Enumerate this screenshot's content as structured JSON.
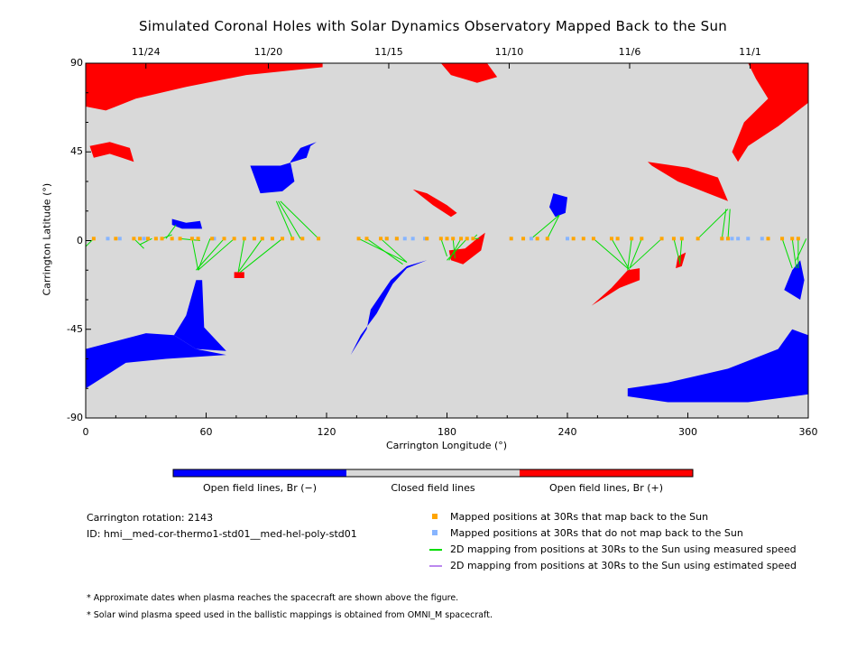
{
  "chart_data": {
    "type": "map",
    "title": "Simulated Coronal Holes with Solar Dynamics Observatory Mapped Back to the Sun",
    "xlabel": "Carrington Longitude (°)",
    "ylabel": "Carrington Latitude (°)",
    "xlim": [
      0,
      360
    ],
    "ylim": [
      -90,
      90
    ],
    "x_ticks": [
      0,
      60,
      120,
      180,
      240,
      300,
      360
    ],
    "y_ticks": [
      {
        "value": 90,
        "label": "90"
      },
      {
        "value": 45,
        "label": "45"
      },
      {
        "value": 0,
        "label": "0"
      },
      {
        "value": -45,
        "label": "-45"
      },
      {
        "value": -90,
        "label": "-90"
      }
    ],
    "top_dates": [
      {
        "label": "11/24",
        "lon": 30
      },
      {
        "label": "11/20",
        "lon": 91
      },
      {
        "label": "11/15",
        "lon": 151
      },
      {
        "label": "11/10",
        "lon": 211
      },
      {
        "label": "11/6",
        "lon": 271
      },
      {
        "label": "11/1",
        "lon": 331
      }
    ],
    "colorbar": {
      "colors": [
        "#0000ff",
        "#d9d9d9",
        "#ff0000"
      ],
      "labels": [
        "Open field lines, Br (−)",
        "Closed field lines",
        "Open field lines, Br (+)"
      ]
    },
    "regions": [
      {
        "polarity": "positive",
        "name": "north-polar-hole-left",
        "points": [
          [
            0,
            90
          ],
          [
            118,
            90
          ],
          [
            118,
            88
          ],
          [
            80,
            84
          ],
          [
            50,
            78
          ],
          [
            25,
            72
          ],
          [
            10,
            66
          ],
          [
            0,
            68
          ]
        ]
      },
      {
        "polarity": "positive",
        "name": "north-polar-hole-right",
        "points": [
          [
            330,
            90
          ],
          [
            360,
            90
          ],
          [
            360,
            70
          ],
          [
            345,
            58
          ],
          [
            330,
            48
          ],
          [
            325,
            40
          ],
          [
            322,
            45
          ],
          [
            328,
            60
          ],
          [
            340,
            72
          ],
          [
            334,
            82
          ]
        ]
      },
      {
        "polarity": "positive",
        "name": "cap-mid-north",
        "points": [
          [
            177,
            90
          ],
          [
            200,
            90
          ],
          [
            205,
            83
          ],
          [
            195,
            80
          ],
          [
            182,
            84
          ]
        ]
      },
      {
        "polarity": "positive",
        "name": "left-lobe",
        "points": [
          [
            2,
            48
          ],
          [
            12,
            50
          ],
          [
            22,
            47
          ],
          [
            24,
            40
          ],
          [
            18,
            42
          ],
          [
            12,
            44
          ],
          [
            4,
            42
          ]
        ]
      },
      {
        "polarity": "positive",
        "name": "streak-north-center",
        "points": [
          [
            163,
            26
          ],
          [
            170,
            24
          ],
          [
            180,
            18
          ],
          [
            185,
            14
          ],
          [
            182,
            12
          ],
          [
            173,
            18
          ]
        ]
      },
      {
        "polarity": "positive",
        "name": "right-upper",
        "points": [
          [
            280,
            40
          ],
          [
            300,
            37
          ],
          [
            315,
            32
          ],
          [
            320,
            20
          ],
          [
            310,
            24
          ],
          [
            295,
            30
          ],
          [
            282,
            38
          ]
        ]
      },
      {
        "polarity": "positive",
        "name": "south-center-blob",
        "points": [
          [
            181,
            -5
          ],
          [
            189,
            -4
          ],
          [
            195,
            1
          ],
          [
            199,
            4
          ],
          [
            197,
            -5
          ],
          [
            188,
            -12
          ],
          [
            182,
            -10
          ]
        ]
      },
      {
        "polarity": "positive",
        "name": "south-right-blob",
        "points": [
          [
            252,
            -33
          ],
          [
            266,
            -24
          ],
          [
            276,
            -20
          ],
          [
            276,
            -14
          ],
          [
            270,
            -15
          ],
          [
            262,
            -24
          ]
        ]
      },
      {
        "polarity": "positive",
        "name": "small-south-1",
        "points": [
          [
            295,
            -8
          ],
          [
            299,
            -6
          ],
          [
            297,
            -13
          ],
          [
            294,
            -14
          ]
        ]
      },
      {
        "polarity": "positive",
        "name": "small-south-2",
        "points": [
          [
            74,
            -16
          ],
          [
            79,
            -16
          ],
          [
            79,
            -19
          ],
          [
            74,
            -19
          ]
        ]
      },
      {
        "polarity": "negative",
        "name": "north-blob-center",
        "points": [
          [
            82,
            38
          ],
          [
            97,
            38
          ],
          [
            110,
            42
          ],
          [
            112,
            48
          ],
          [
            115,
            50
          ],
          [
            107,
            47
          ],
          [
            102,
            40
          ],
          [
            104,
            30
          ],
          [
            98,
            25
          ],
          [
            87,
            24
          ]
        ]
      },
      {
        "polarity": "negative",
        "name": "north-right-small",
        "points": [
          [
            233,
            24
          ],
          [
            240,
            22
          ],
          [
            239,
            14
          ],
          [
            234,
            12
          ],
          [
            231,
            17
          ]
        ]
      },
      {
        "polarity": "negative",
        "name": "north-left-small",
        "points": [
          [
            43,
            11
          ],
          [
            50,
            9
          ],
          [
            57,
            10
          ],
          [
            58,
            6
          ],
          [
            48,
            6
          ],
          [
            43,
            8
          ]
        ]
      },
      {
        "polarity": "negative",
        "name": "diagonal-band-center",
        "points": [
          [
            137,
            -48
          ],
          [
            145,
            -37
          ],
          [
            153,
            -22
          ],
          [
            160,
            -14
          ],
          [
            170,
            -10
          ],
          [
            160,
            -13
          ],
          [
            152,
            -20
          ],
          [
            142,
            -35
          ],
          [
            140,
            -45
          ],
          [
            132,
            -58
          ]
        ]
      },
      {
        "polarity": "negative",
        "name": "lower-left-arm",
        "points": [
          [
            44,
            -48
          ],
          [
            50,
            -38
          ],
          [
            55,
            -20
          ],
          [
            58,
            -20
          ],
          [
            59,
            -44
          ],
          [
            70,
            -56
          ],
          [
            55,
            -55
          ]
        ]
      },
      {
        "polarity": "negative",
        "name": "south-polar-left",
        "points": [
          [
            0,
            -55
          ],
          [
            30,
            -47
          ],
          [
            44,
            -48
          ],
          [
            55,
            -55
          ],
          [
            70,
            -58
          ],
          [
            40,
            -60
          ],
          [
            20,
            -62
          ],
          [
            0,
            -75
          ]
        ]
      },
      {
        "polarity": "negative",
        "name": "south-polar-right",
        "points": [
          [
            270,
            -75
          ],
          [
            290,
            -72
          ],
          [
            320,
            -65
          ],
          [
            345,
            -55
          ],
          [
            352,
            -45
          ],
          [
            360,
            -48
          ],
          [
            360,
            -78
          ],
          [
            330,
            -82
          ],
          [
            290,
            -82
          ],
          [
            270,
            -79
          ]
        ]
      },
      {
        "polarity": "negative",
        "name": "right-edge-blob",
        "points": [
          [
            348,
            -25
          ],
          [
            352,
            -15
          ],
          [
            356,
            -10
          ],
          [
            358,
            -20
          ],
          [
            356,
            -30
          ]
        ]
      }
    ],
    "measured_footpoints": [
      4,
      15,
      24,
      27,
      31,
      35,
      38,
      43,
      47,
      53,
      56,
      63,
      69,
      74,
      79,
      84,
      88,
      93,
      98,
      103,
      108,
      116,
      136,
      140,
      147,
      150,
      155,
      170,
      177,
      180,
      183,
      187,
      190,
      193,
      212,
      218,
      225,
      230,
      243,
      248,
      253,
      262,
      265,
      272,
      277,
      287,
      293,
      297,
      305,
      317,
      320,
      340,
      347,
      352,
      355
    ],
    "unmapped_footpoints": [
      11,
      17,
      29,
      31,
      64,
      150,
      155,
      159,
      163,
      169,
      222,
      240,
      317,
      322,
      325,
      330,
      337
    ],
    "mapping_lines": [
      [
        [
          4,
          1
        ],
        [
          0,
          -3
        ]
      ],
      [
        [
          24,
          1
        ],
        [
          29,
          -4
        ]
      ],
      [
        [
          33,
          1
        ],
        [
          27,
          -2
        ]
      ],
      [
        [
          38,
          1
        ],
        [
          43,
          3
        ]
      ],
      [
        [
          40,
          1
        ],
        [
          45,
          8
        ]
      ],
      [
        [
          47,
          1
        ],
        [
          57,
          0
        ]
      ],
      [
        [
          53,
          1
        ],
        [
          56,
          -15
        ]
      ],
      [
        [
          62,
          1
        ],
        [
          56,
          -15
        ]
      ],
      [
        [
          69,
          1
        ],
        [
          55,
          -15
        ]
      ],
      [
        [
          74,
          1
        ],
        [
          56,
          -15
        ]
      ],
      [
        [
          79,
          1
        ],
        [
          76,
          -16
        ]
      ],
      [
        [
          88,
          1
        ],
        [
          76,
          -16
        ]
      ],
      [
        [
          98,
          1
        ],
        [
          77,
          -16
        ]
      ],
      [
        [
          103,
          1
        ],
        [
          95,
          20
        ]
      ],
      [
        [
          107,
          1
        ],
        [
          96,
          20
        ]
      ],
      [
        [
          116,
          1
        ],
        [
          97,
          20
        ]
      ],
      [
        [
          136,
          1
        ],
        [
          160,
          -11
        ]
      ],
      [
        [
          140,
          1
        ],
        [
          158,
          -12
        ]
      ],
      [
        [
          147,
          1
        ],
        [
          160,
          -11
        ]
      ],
      [
        [
          177,
          1
        ],
        [
          180,
          -8
        ]
      ],
      [
        [
          183,
          1
        ],
        [
          184,
          -9
        ]
      ],
      [
        [
          187,
          1
        ],
        [
          181,
          -10
        ]
      ],
      [
        [
          190,
          1
        ],
        [
          180,
          -10
        ]
      ],
      [
        [
          193,
          1
        ],
        [
          195,
          3
        ]
      ],
      [
        [
          193,
          1
        ],
        [
          196,
          1
        ]
      ],
      [
        [
          222,
          1
        ],
        [
          236,
          13
        ]
      ],
      [
        [
          230,
          1
        ],
        [
          236,
          13
        ]
      ],
      [
        [
          253,
          1
        ],
        [
          270,
          -14
        ]
      ],
      [
        [
          262,
          1
        ],
        [
          271,
          -15
        ]
      ],
      [
        [
          272,
          1
        ],
        [
          270,
          -15
        ]
      ],
      [
        [
          277,
          1
        ],
        [
          271,
          -14
        ]
      ],
      [
        [
          287,
          1
        ],
        [
          271,
          -14
        ]
      ],
      [
        [
          293,
          1
        ],
        [
          296,
          -11
        ]
      ],
      [
        [
          297,
          1
        ],
        [
          296,
          -12
        ]
      ],
      [
        [
          305,
          1
        ],
        [
          320,
          16
        ]
      ],
      [
        [
          317,
          1
        ],
        [
          319,
          16
        ]
      ],
      [
        [
          320,
          1
        ],
        [
          321,
          16
        ]
      ],
      [
        [
          347,
          1
        ],
        [
          352,
          -14
        ]
      ],
      [
        [
          352,
          1
        ],
        [
          354,
          -14
        ]
      ],
      [
        [
          355,
          1
        ],
        [
          355,
          -14
        ]
      ],
      [
        [
          359,
          1
        ],
        [
          354,
          -10
        ]
      ]
    ],
    "info": {
      "rotation": "Carrington rotation: 2143",
      "model_id": "ID: hmi__med-cor-thermo1-std01__med-hel-poly-std01"
    },
    "legend": [
      {
        "kind": "square",
        "color": "#ffa500",
        "label": "Mapped positions at 30Rs that map back to the Sun"
      },
      {
        "kind": "square",
        "color": "#87b5ff",
        "label": "Mapped positions at 30Rs that do not map back to the Sun"
      },
      {
        "kind": "line",
        "color": "#00dd00",
        "label": "2D mapping from positions at 30Rs to the Sun using measured speed"
      },
      {
        "kind": "line",
        "color": "#bb88ee",
        "label": "2D mapping from positions at 30Rs to the Sun using estimated speed"
      }
    ],
    "notes": [
      "* Approximate dates when plasma reaches the spacecraft are shown above the figure.",
      "* Solar wind plasma speed used in the ballistic mappings is obtained from OMNI_M spacecraft."
    ]
  }
}
